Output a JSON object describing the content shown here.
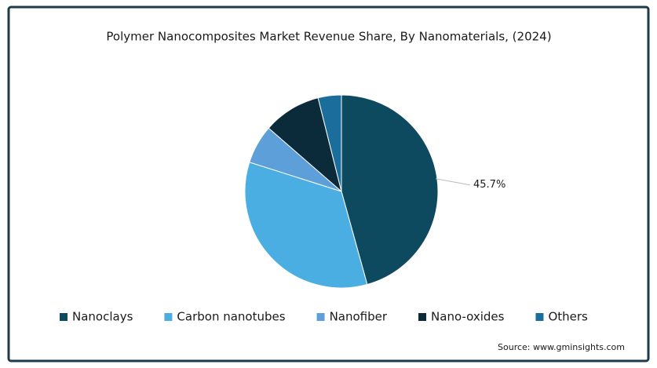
{
  "chart_data": {
    "type": "pie",
    "title": "Polymer Nanocomposites Market Revenue Share, By Nanomaterials,  (2024)",
    "categories": [
      "Nanoclays",
      "Carbon nanotubes",
      "Nanofiber",
      "Nano-oxides",
      "Others"
    ],
    "values": [
      45.7,
      34.2,
      6.5,
      9.7,
      3.9
    ],
    "value_labels": [
      "45.7%",
      null,
      null,
      null,
      null
    ],
    "colors": [
      "#0d4a60",
      "#4aaee3",
      "#5d9fd8",
      "#0b2a3a",
      "#1b6e9c"
    ],
    "legend": "bottom",
    "source": "Source: www.gminsights.com"
  }
}
